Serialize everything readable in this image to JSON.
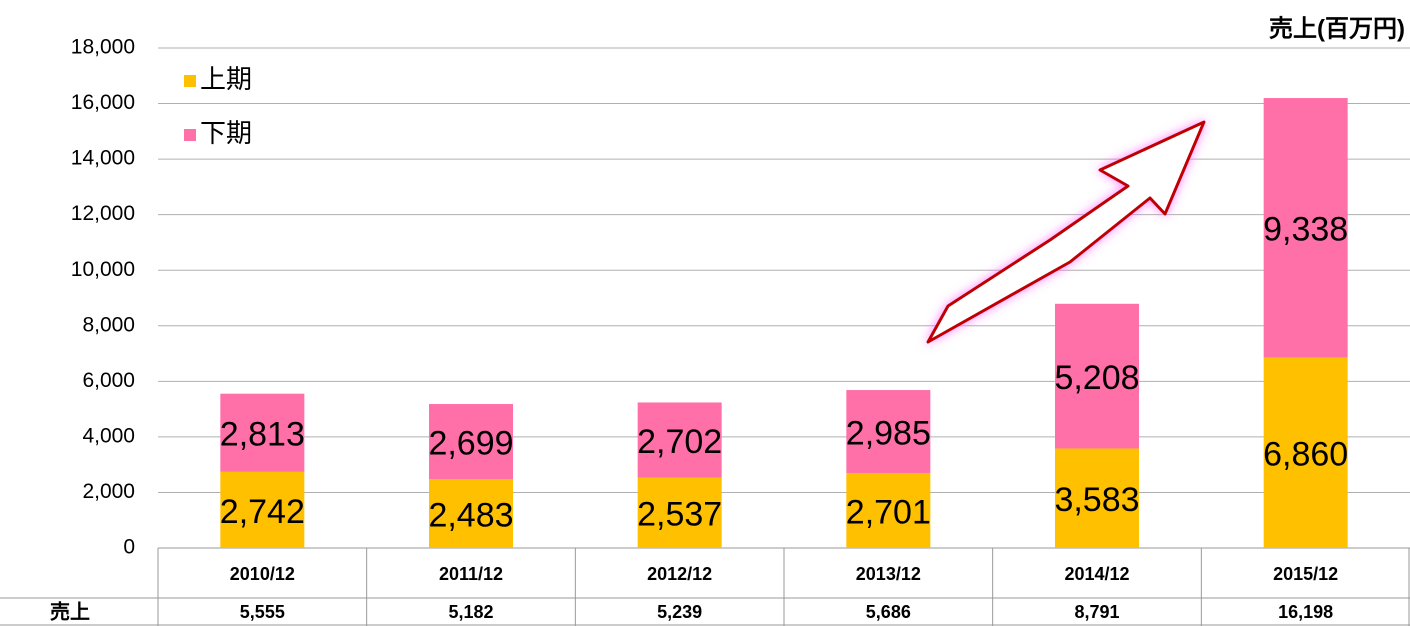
{
  "chart_data": {
    "type": "stacked_bar",
    "title": "売上(百万円)",
    "categories": [
      "2010/12",
      "2011/12",
      "2012/12",
      "2013/12",
      "2014/12",
      "2015/12"
    ],
    "series": [
      {
        "name": "上期",
        "color": "#ffc000",
        "values": [
          2742,
          2483,
          2537,
          2701,
          3583,
          6860
        ],
        "value_labels": [
          "2,742",
          "2,483",
          "2,537",
          "2,701",
          "3,583",
          "6,860"
        ]
      },
      {
        "name": "下期",
        "color": "#ff6fa8",
        "values": [
          2813,
          2699,
          2702,
          2985,
          5208,
          9338
        ],
        "value_labels": [
          "2,813",
          "2,699",
          "2,702",
          "2,985",
          "5,208",
          "9,338"
        ]
      }
    ],
    "ylim": [
      0,
      18000
    ],
    "yticks": [
      0,
      {
        "value": 2000,
        "label": "2,000"
      },
      {
        "value": 4000,
        "label": "4,000"
      },
      {
        "value": 6000,
        "label": "6,000"
      },
      {
        "value": 8000,
        "label": "8,000"
      },
      {
        "value": 10000,
        "label": "10,000"
      },
      {
        "value": 12000,
        "label": "12,000"
      },
      {
        "value": 14000,
        "label": "14,000"
      },
      {
        "value": 16000,
        "label": "16,000"
      },
      {
        "value": 18000,
        "label": "18,000"
      }
    ],
    "grid": true,
    "legend": "upper left",
    "table": {
      "row_label": "売上",
      "cells": [
        "5,555",
        "5,182",
        "5,239",
        "5,686",
        "8,791",
        "16,198"
      ]
    }
  }
}
